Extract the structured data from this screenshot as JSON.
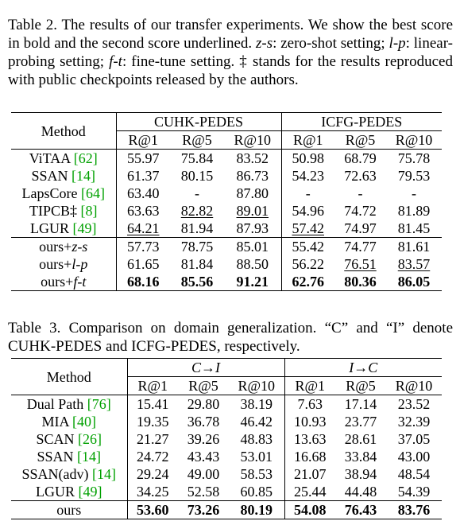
{
  "table2": {
    "caption_parts": {
      "a": "Table 2. The results of our transfer experiments.  We show the best score in bold and the second score underlined. ",
      "zs": "z-s",
      "b": ": zero-shot setting; ",
      "lp": "l-p",
      "c": ": linear-probing setting; ",
      "ft": "f-t",
      "d": ": fine-tune setting. ‡ stands for the results reproduced with public checkpoints released by the authors."
    },
    "header": {
      "method": "Method",
      "group1": "CUHK-PEDES",
      "group2": "ICFG-PEDES",
      "cols": [
        "R@1",
        "R@5",
        "R@10",
        "R@1",
        "R@5",
        "R@10"
      ]
    },
    "rows": [
      {
        "name": "ViTAA ",
        "ref": "[62]",
        "vals": [
          "55.97",
          "75.84",
          "83.52",
          "50.98",
          "68.79",
          "75.78"
        ]
      },
      {
        "name": "SSAN ",
        "ref": "[14]",
        "vals": [
          "61.37",
          "80.15",
          "86.73",
          "54.23",
          "72.63",
          "79.53"
        ]
      },
      {
        "name": "LapsCore ",
        "ref": "[64]",
        "vals": [
          "63.40",
          "-",
          "87.80",
          "-",
          "-",
          "-"
        ]
      },
      {
        "name": "TIPCB‡ ",
        "ref": "[8]",
        "vals": [
          "63.63",
          "82.82",
          "89.01",
          "54.96",
          "74.72",
          "81.89"
        ]
      },
      {
        "name": "LGUR ",
        "ref": "[49]",
        "vals": [
          "64.21",
          "81.94",
          "87.93",
          "57.42",
          "74.97",
          "81.45"
        ]
      },
      {
        "name": "ours+",
        "suffix": "z-s",
        "vals": [
          "57.73",
          "78.75",
          "85.01",
          "55.42",
          "74.77",
          "81.61"
        ]
      },
      {
        "name": "ours+",
        "suffix": "l-p",
        "vals": [
          "61.65",
          "81.84",
          "88.50",
          "56.22",
          "76.51",
          "83.57"
        ]
      },
      {
        "name": "ours+",
        "suffix": "f-t",
        "vals": [
          "68.16",
          "85.56",
          "91.21",
          "62.76",
          "80.36",
          "86.05"
        ]
      }
    ]
  },
  "table3": {
    "caption": "Table 3. Comparison on domain generalization.  “C” and “I” denote CUHK-PEDES and ICFG-PEDES, respectively.",
    "header": {
      "method": "Method",
      "group1": "C→I",
      "group2": "I→C",
      "cols": [
        "R@1",
        "R@5",
        "R@10",
        "R@1",
        "R@5",
        "R@10"
      ]
    },
    "rows": [
      {
        "name": "Dual Path ",
        "ref": "[76]",
        "vals": [
          "15.41",
          "29.80",
          "38.19",
          "7.63",
          "17.14",
          "23.52"
        ]
      },
      {
        "name": "MIA ",
        "ref": "[40]",
        "vals": [
          "19.35",
          "36.78",
          "46.42",
          "10.93",
          "23.77",
          "32.39"
        ]
      },
      {
        "name": "SCAN ",
        "ref": "[26]",
        "vals": [
          "21.27",
          "39.26",
          "48.83",
          "13.63",
          "28.61",
          "37.05"
        ]
      },
      {
        "name": "SSAN ",
        "ref": "[14]",
        "vals": [
          "24.72",
          "43.43",
          "53.01",
          "16.68",
          "33.84",
          "43.00"
        ]
      },
      {
        "name": "SSAN(adv) ",
        "ref": "[14]",
        "vals": [
          "29.24",
          "49.00",
          "58.53",
          "21.07",
          "38.94",
          "48.54"
        ]
      },
      {
        "name": "LGUR ",
        "ref": "[49]",
        "vals": [
          "34.25",
          "52.58",
          "60.85",
          "25.44",
          "44.48",
          "54.39"
        ]
      },
      {
        "name": "ours",
        "vals": [
          "53.60",
          "73.26",
          "80.19",
          "54.08",
          "76.43",
          "83.76"
        ]
      }
    ]
  },
  "colors": {
    "reference": "#00a000",
    "text": "#000000"
  }
}
